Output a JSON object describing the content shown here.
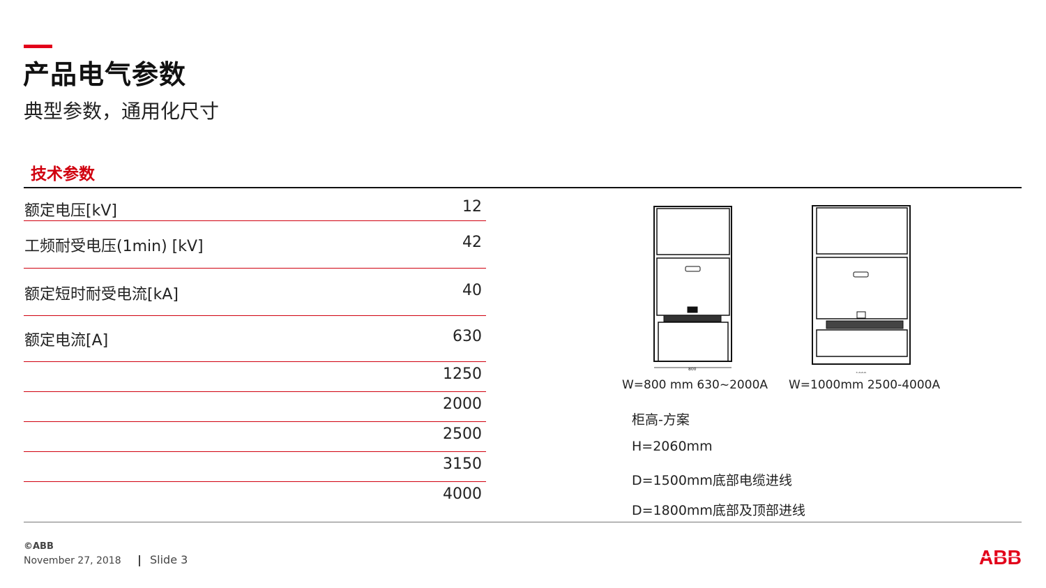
{
  "header": {
    "title": "产品电气参数",
    "subtitle": "典型参数，通用化尺寸"
  },
  "section": {
    "title": "技术参数"
  },
  "table": {
    "rows": [
      {
        "label": "额定电压[kV]",
        "value": "12"
      },
      {
        "label": "工频耐受电压(1min) [kV]",
        "value": "42"
      },
      {
        "label": "额定短时耐受电流[kA]",
        "value": "40"
      },
      {
        "label": "额定电流[A]",
        "value": "630"
      },
      {
        "label": "",
        "value": "1250"
      },
      {
        "label": "",
        "value": "2000"
      },
      {
        "label": "",
        "value": "2500"
      },
      {
        "label": "",
        "value": "3150"
      },
      {
        "label": "",
        "value": "4000"
      }
    ]
  },
  "drawings": [
    {
      "dimension": "800",
      "caption": "W=800 mm  630~2000A"
    },
    {
      "dimension": "1000",
      "caption": "W=1000mm 2500-4000A"
    }
  ],
  "notes": [
    "柜高-方案",
    "H=2060mm",
    "D=1500mm底部电缆进线",
    "D=1800mm底部及顶部进线"
  ],
  "footer": {
    "copyright": "©ABB",
    "date": "November 27, 2018",
    "slide": "Slide 3",
    "logo": "ABB"
  },
  "colors": {
    "accent": "#e2001a",
    "section": "#d0000e"
  }
}
